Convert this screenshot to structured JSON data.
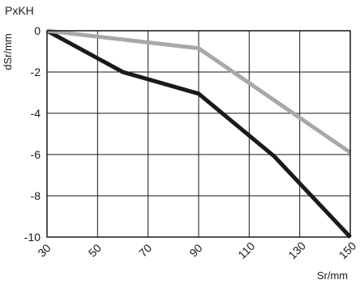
{
  "chart_data": {
    "type": "line",
    "title": "PxKH",
    "xlabel": "Sr/mm",
    "ylabel": "dSr/mm",
    "xlim": [
      30,
      150
    ],
    "ylim": [
      -10,
      0
    ],
    "x_ticks": [
      30,
      50,
      70,
      90,
      110,
      130,
      150
    ],
    "y_ticks": [
      0,
      -2,
      -4,
      -6,
      -8,
      -10
    ],
    "grid": true,
    "series": [
      {
        "color": "#1a1a1a",
        "points": [
          [
            30,
            0
          ],
          [
            60,
            -2
          ],
          [
            90,
            -3.05
          ],
          [
            120,
            -6.1
          ],
          [
            150,
            -10
          ]
        ]
      },
      {
        "color": "#a8a8a8",
        "points": [
          [
            30,
            0
          ],
          [
            90,
            -0.85
          ],
          [
            150,
            -5.9
          ]
        ]
      }
    ]
  }
}
